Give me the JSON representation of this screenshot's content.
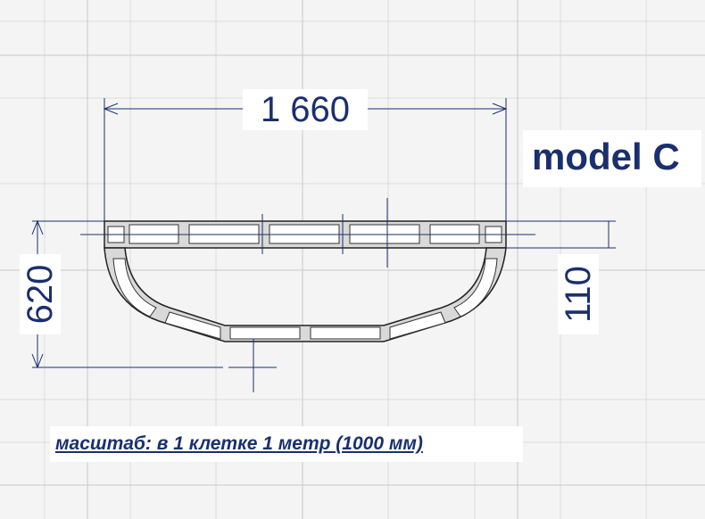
{
  "dimensions": {
    "width_label": "1 660",
    "depth_label": "620",
    "front_label": "110"
  },
  "model_title": "model C",
  "scale_note": "масштаб: в 1 клетке 1 метр (1000 мм)",
  "colors": {
    "background": "#f4f4f4",
    "grid": "#c8c8c8",
    "dimension": "#1a2f6e",
    "outline": "#222222",
    "fill": "#d9d9d9"
  }
}
